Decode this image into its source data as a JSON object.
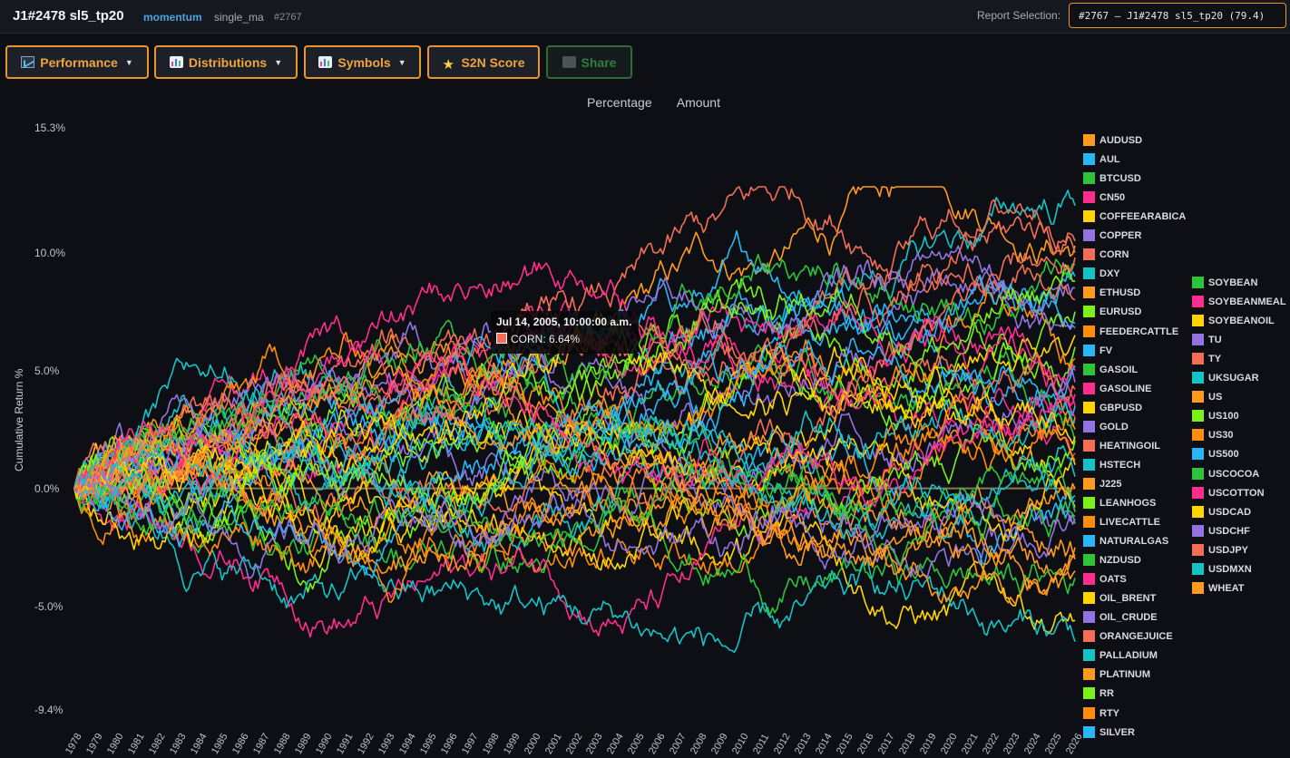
{
  "header": {
    "title": "J1#2478 sl5_tp20",
    "strategy": "momentum",
    "variant": "single_ma",
    "report_id": "#2767",
    "report_selection_label": "Report Selection:",
    "report_selection_value": "#2767 — J1#2478 sl5_tp20 (79.4)"
  },
  "toolbar": {
    "performance": "Performance",
    "distributions": "Distributions",
    "symbols": "Symbols",
    "s2n": "S2N Score",
    "share": "Share"
  },
  "tabs": {
    "percentage": "Percentage",
    "amount": "Amount"
  },
  "tooltip": {
    "date": "Jul 14, 2005, 10:00:00 a.m.",
    "series": "CORN",
    "value": "6.64%",
    "color": "#f46e55"
  },
  "chart_data": {
    "type": "line",
    "ylabel": "Cumulative Return %",
    "y_tick_labels": [
      "15.3%",
      "10.0%",
      "5.0%",
      "0.0%",
      "-5.0%",
      "-9.4%"
    ],
    "y_tick_values": [
      15.3,
      10.0,
      5.0,
      0.0,
      -5.0,
      -9.4
    ],
    "ylim": [
      -9.4,
      15.3
    ],
    "x_ticks": [
      "1978",
      "1979",
      "1980",
      "1981",
      "1982",
      "1983",
      "1984",
      "1985",
      "1986",
      "1987",
      "1988",
      "1989",
      "1990",
      "1991",
      "1992",
      "1993",
      "1994",
      "1995",
      "1996",
      "1997",
      "1998",
      "1999",
      "2000",
      "2001",
      "2002",
      "2003",
      "2004",
      "2005",
      "2006",
      "2007",
      "2008",
      "2009",
      "2010",
      "2011",
      "2012",
      "2013",
      "2014",
      "2015",
      "2016",
      "2017",
      "2018",
      "2019",
      "2020",
      "2021",
      "2022",
      "2023",
      "2024",
      "2025",
      "2026"
    ],
    "legend_placement": "right",
    "series": [
      {
        "name": "AUDUSD",
        "color": "#ff9a1f",
        "end": 10.3
      },
      {
        "name": "AUL",
        "color": "#29b6f6",
        "end": 3.5
      },
      {
        "name": "BTCUSD",
        "color": "#2ec43a",
        "end": 2.0
      },
      {
        "name": "CN50",
        "color": "#ff2d8e",
        "end": 5.0
      },
      {
        "name": "COFFEEARABICA",
        "color": "#ffd500",
        "end": -5.6
      },
      {
        "name": "COPPER",
        "color": "#9373e0",
        "end": 8.5
      },
      {
        "name": "CORN",
        "color": "#f46e55",
        "end": 10.0
      },
      {
        "name": "DXY",
        "color": "#15c3c7",
        "end": 12.0
      },
      {
        "name": "ETHUSD",
        "color": "#ff9a1f",
        "end": -3.5
      },
      {
        "name": "EURUSD",
        "color": "#7cf019",
        "end": 7.5
      },
      {
        "name": "FEEDERCATTLE",
        "color": "#ff8c0a",
        "end": 3.0
      },
      {
        "name": "FV",
        "color": "#29b6f6",
        "end": 9.0
      },
      {
        "name": "GASOIL",
        "color": "#2ec43a",
        "end": -3.8
      },
      {
        "name": "GASOLINE",
        "color": "#ff2d8e",
        "end": 4.0
      },
      {
        "name": "GBPUSD",
        "color": "#ffd500",
        "end": 1.0
      },
      {
        "name": "GOLD",
        "color": "#9373e0",
        "end": -1.2
      },
      {
        "name": "HEATINGOIL",
        "color": "#f46e55",
        "end": 10.5
      },
      {
        "name": "HSTECH",
        "color": "#15c3c7",
        "end": -6.5
      },
      {
        "name": "J225",
        "color": "#ff9a1f",
        "end": -2.5
      },
      {
        "name": "LEANHOGS",
        "color": "#7cf019",
        "end": 6.0
      },
      {
        "name": "LIVECATTLE",
        "color": "#ff8c0a",
        "end": 2.5
      },
      {
        "name": "NATURALGAS",
        "color": "#29b6f6",
        "end": -0.5
      },
      {
        "name": "NZDUSD",
        "color": "#2ec43a",
        "end": 9.5
      },
      {
        "name": "OATS",
        "color": "#ff2d8e",
        "end": 1.5
      },
      {
        "name": "OIL_BRENT",
        "color": "#ffd500",
        "end": 6.5
      },
      {
        "name": "OIL_CRUDE",
        "color": "#9373e0",
        "end": 4.5
      },
      {
        "name": "ORANGEJUICE",
        "color": "#f46e55",
        "end": 8.0
      },
      {
        "name": "PALLADIUM",
        "color": "#15c3c7",
        "end": 0.5
      },
      {
        "name": "PLATINUM",
        "color": "#ff9a1f",
        "end": -3.0
      },
      {
        "name": "RR",
        "color": "#7cf019",
        "end": 2.0
      },
      {
        "name": "RTY",
        "color": "#ff8c0a",
        "end": 5.5
      },
      {
        "name": "SILVER",
        "color": "#29b6f6",
        "end": 7.0
      },
      {
        "name": "SOYBEAN",
        "color": "#2ec43a",
        "end": -1.5
      },
      {
        "name": "SOYBEANMEAL",
        "color": "#ff2d8e",
        "end": 3.5
      },
      {
        "name": "SOYBEANOIL",
        "color": "#ffd500",
        "end": -0.8
      },
      {
        "name": "TU",
        "color": "#9373e0",
        "end": 6.8
      },
      {
        "name": "TY",
        "color": "#f46e55",
        "end": 4.2
      },
      {
        "name": "UKSUGAR",
        "color": "#15c3c7",
        "end": 2.8
      },
      {
        "name": "US",
        "color": "#ff9a1f",
        "end": 0.0
      },
      {
        "name": "US100",
        "color": "#7cf019",
        "end": 8.8
      },
      {
        "name": "US30",
        "color": "#ff8c0a",
        "end": 1.2
      },
      {
        "name": "US500",
        "color": "#29b6f6",
        "end": 5.2
      },
      {
        "name": "USCOCOA",
        "color": "#2ec43a",
        "end": -1.0
      },
      {
        "name": "USCOTTON",
        "color": "#ff2d8e",
        "end": 3.0
      },
      {
        "name": "USDCAD",
        "color": "#ffd500",
        "end": 2.2
      },
      {
        "name": "USDCHF",
        "color": "#9373e0",
        "end": -1.3
      },
      {
        "name": "USDJPY",
        "color": "#f46e55",
        "end": 9.8
      },
      {
        "name": "USDMXN",
        "color": "#15c3c7",
        "end": -0.3
      },
      {
        "name": "WHEAT",
        "color": "#ff9a1f",
        "end": -2.8
      }
    ]
  }
}
